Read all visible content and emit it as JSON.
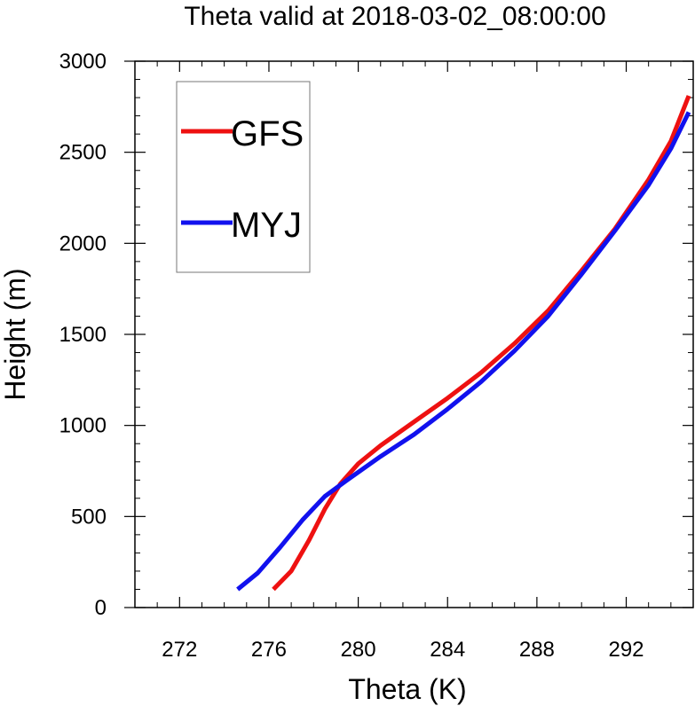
{
  "chart_data": {
    "type": "line",
    "title": "Theta valid at 2018-03-02_08:00:00",
    "xlabel": "Theta (K)",
    "ylabel": "Height (m)",
    "xlim": [
      270,
      295
    ],
    "ylim": [
      0,
      3000
    ],
    "xticks": [
      272,
      276,
      280,
      284,
      288,
      292
    ],
    "yticks": [
      0,
      500,
      1000,
      1500,
      2000,
      2500,
      3000
    ],
    "x_minor_step": 1,
    "y_minor_step": 100,
    "grid": false,
    "legend_position": "top-left",
    "series": [
      {
        "name": "GFS",
        "color": "#ee1111",
        "points": [
          [
            276.2,
            100
          ],
          [
            277.0,
            200
          ],
          [
            277.8,
            370
          ],
          [
            278.5,
            540
          ],
          [
            279.2,
            680
          ],
          [
            280.0,
            790
          ],
          [
            281.0,
            890
          ],
          [
            282.5,
            1020
          ],
          [
            284.0,
            1150
          ],
          [
            285.5,
            1290
          ],
          [
            287.0,
            1450
          ],
          [
            288.5,
            1630
          ],
          [
            290.0,
            1850
          ],
          [
            291.5,
            2080
          ],
          [
            293.0,
            2350
          ],
          [
            294.0,
            2560
          ],
          [
            294.8,
            2810
          ]
        ]
      },
      {
        "name": "MYJ",
        "color": "#1111ee",
        "points": [
          [
            274.6,
            100
          ],
          [
            275.5,
            190
          ],
          [
            276.5,
            330
          ],
          [
            277.5,
            480
          ],
          [
            278.5,
            610
          ],
          [
            279.5,
            700
          ],
          [
            281.0,
            830
          ],
          [
            282.5,
            950
          ],
          [
            284.0,
            1090
          ],
          [
            285.5,
            1240
          ],
          [
            287.0,
            1410
          ],
          [
            288.5,
            1600
          ],
          [
            290.0,
            1830
          ],
          [
            291.5,
            2070
          ],
          [
            293.0,
            2320
          ],
          [
            294.0,
            2520
          ],
          [
            294.8,
            2720
          ]
        ]
      }
    ]
  }
}
